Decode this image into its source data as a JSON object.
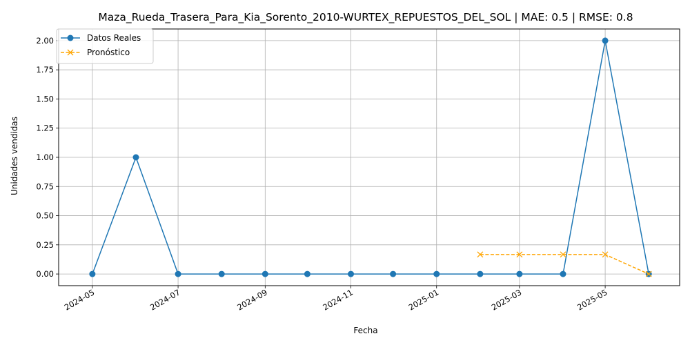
{
  "chart_data": {
    "type": "line",
    "title": "Maza_Rueda_Trasera_Para_Kia_Sorento_2010-WURTEX_REPUESTOS_DEL_SOL | MAE: 0.5 | RMSE: 0.8",
    "xlabel": "Fecha",
    "ylabel": "Unidades vendidas",
    "xlim": [
      "2024-04-07",
      "2025-06-23"
    ],
    "ylim": [
      -0.1,
      2.1
    ],
    "x_ticks": [
      "2024-05",
      "2024-07",
      "2024-09",
      "2024-11",
      "2025-01",
      "2025-03",
      "2025-05"
    ],
    "x_tick_dates": [
      "2024-05-01",
      "2024-07-01",
      "2024-09-01",
      "2024-11-01",
      "2025-01-01",
      "2025-03-01",
      "2025-05-01"
    ],
    "y_ticks": [
      "0.00",
      "0.25",
      "0.50",
      "0.75",
      "1.00",
      "1.25",
      "1.50",
      "1.75",
      "2.00"
    ],
    "y_tick_values": [
      0,
      0.25,
      0.5,
      0.75,
      1.0,
      1.25,
      1.5,
      1.75,
      2.0
    ],
    "grid": true,
    "legend_position": "top-left",
    "series": [
      {
        "name": "Datos Reales",
        "color": "#1f77b4",
        "style": "solid",
        "marker": "circle",
        "x": [
          "2024-05-01",
          "2024-06-01",
          "2024-07-01",
          "2024-08-01",
          "2024-09-01",
          "2024-10-01",
          "2024-11-01",
          "2024-12-01",
          "2025-01-01",
          "2025-02-01",
          "2025-03-01",
          "2025-04-01",
          "2025-05-01",
          "2025-06-01"
        ],
        "values": [
          0,
          1,
          0,
          0,
          0,
          0,
          0,
          0,
          0,
          0,
          0,
          0,
          2,
          0
        ]
      },
      {
        "name": "Pronóstico",
        "color": "#ffa500",
        "style": "dashed",
        "marker": "x",
        "x": [
          "2025-02-01",
          "2025-03-01",
          "2025-04-01",
          "2025-05-01",
          "2025-06-01"
        ],
        "values": [
          0.167,
          0.167,
          0.167,
          0.167,
          0
        ]
      }
    ]
  }
}
